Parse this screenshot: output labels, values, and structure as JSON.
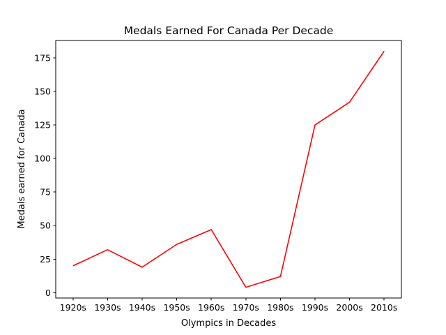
{
  "chart_data": {
    "type": "line",
    "title": "Medals Earned For Canada Per Decade",
    "xlabel": "Olympics in Decades",
    "ylabel": "Medals earned for Canada",
    "categories": [
      "1920s",
      "1930s",
      "1940s",
      "1950s",
      "1960s",
      "1970s",
      "1980s",
      "1990s",
      "2000s",
      "2010s"
    ],
    "series": [
      {
        "values": [
          20,
          32,
          19,
          36,
          47,
          4,
          12,
          125,
          142,
          180
        ],
        "color": "#ff0000"
      }
    ],
    "yticks": [
      0,
      25,
      50,
      75,
      100,
      125,
      150,
      175
    ],
    "ylim": [
      -4,
      188
    ],
    "grid": false,
    "legend": "none"
  }
}
